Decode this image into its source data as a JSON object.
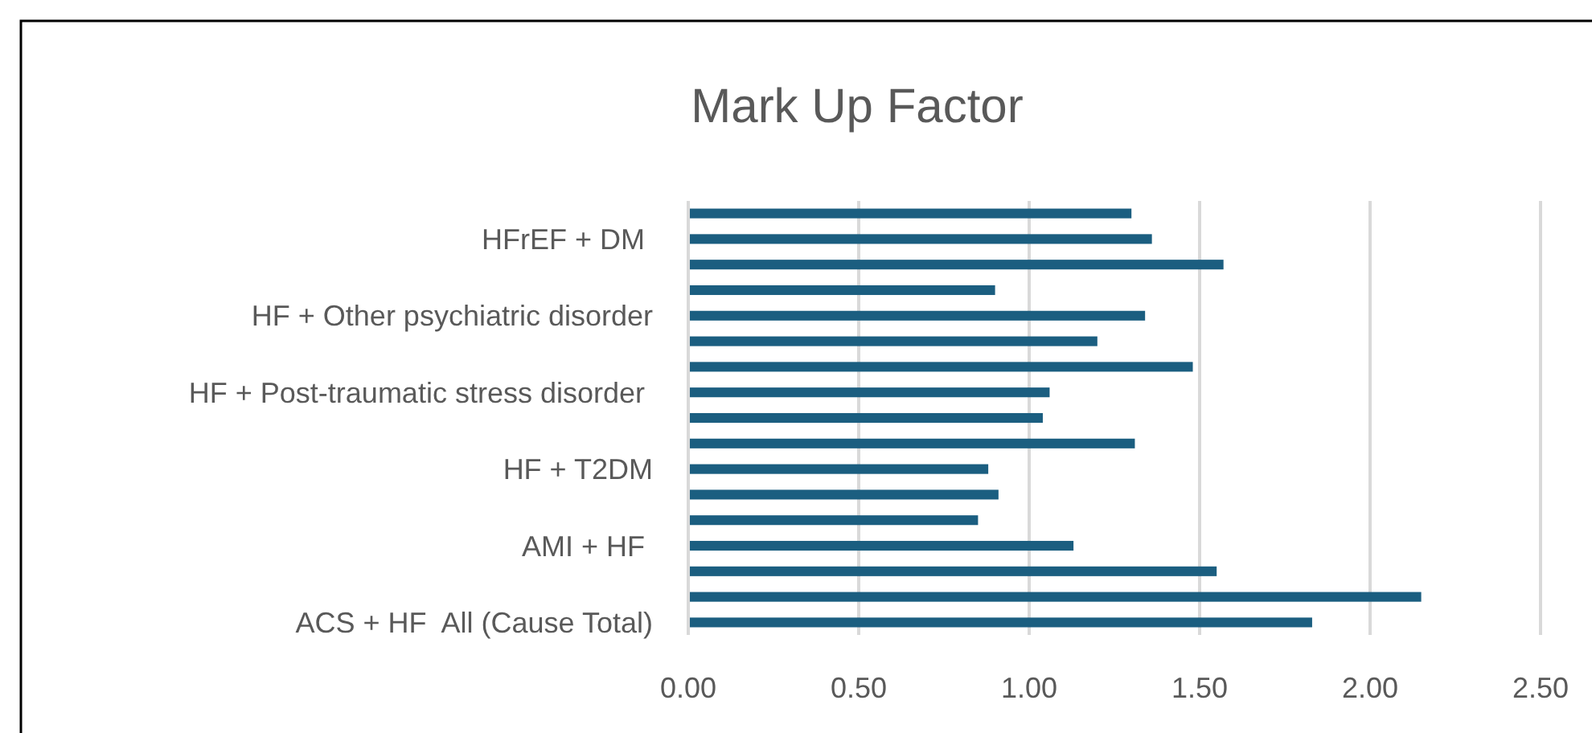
{
  "chart_data": {
    "type": "bar",
    "orientation": "horizontal",
    "title": "Mark Up Factor",
    "categories": [
      null,
      "HFrEF + DM ",
      null,
      null,
      "HF + Other psychiatric disorder",
      null,
      null,
      "HF + Post-traumatic stress disorder ",
      null,
      null,
      "HF + T2DM",
      null,
      null,
      "AMI + HF ",
      null,
      null,
      "ACS + HF  All (Cause Total)"
    ],
    "values": [
      1.3,
      1.36,
      1.57,
      0.9,
      1.34,
      1.2,
      1.48,
      1.06,
      1.04,
      1.31,
      0.88,
      0.91,
      0.85,
      1.13,
      1.55,
      2.15,
      1.83
    ],
    "color": "#1b5e80",
    "xlim": [
      0,
      2.5
    ],
    "xticks": [
      {
        "value": 0,
        "label": "0.00"
      },
      {
        "value": 0.5,
        "label": "0.50"
      },
      {
        "value": 1,
        "label": "1.00"
      },
      {
        "value": 1.5,
        "label": "1.50"
      },
      {
        "value": 2,
        "label": "2.00"
      },
      {
        "value": 2.5,
        "label": "2.50"
      }
    ],
    "grid": "x"
  }
}
